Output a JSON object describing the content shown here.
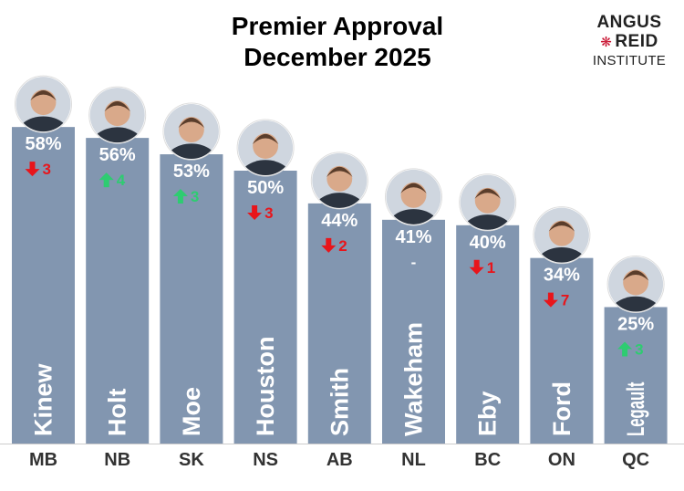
{
  "title_line1": "Premier Approval",
  "title_line2": "December 2025",
  "logo": {
    "line1": "ANGUS",
    "line2": "REID",
    "line3": "INSTITUTE"
  },
  "colors": {
    "bar": "#8296b0",
    "up": "#2ecc71",
    "down": "#e8151b",
    "axis": "#cccccc",
    "logo_leaf": "#c8102e"
  },
  "chart_data": {
    "type": "bar",
    "title": "Premier Approval December 2025",
    "categories": [
      "MB",
      "NB",
      "SK",
      "NS",
      "AB",
      "NL",
      "BC",
      "ON",
      "QC"
    ],
    "premiers": [
      "Kinew",
      "Holt",
      "Moe",
      "Houston",
      "Smith",
      "Wakeham",
      "Eby",
      "Ford",
      "Legault"
    ],
    "values": [
      58,
      56,
      53,
      50,
      44,
      41,
      40,
      34,
      25
    ],
    "value_labels": [
      "58%",
      "56%",
      "53%",
      "50%",
      "44%",
      "41%",
      "40%",
      "34%",
      "25%"
    ],
    "changes": [
      {
        "dir": "down",
        "label": "3"
      },
      {
        "dir": "up",
        "label": "4"
      },
      {
        "dir": "up",
        "label": "3"
      },
      {
        "dir": "down",
        "label": "3"
      },
      {
        "dir": "down",
        "label": "2"
      },
      {
        "dir": "none",
        "label": "-"
      },
      {
        "dir": "down",
        "label": "1"
      },
      {
        "dir": "down",
        "label": "7"
      },
      {
        "dir": "up",
        "label": "3"
      }
    ],
    "ylim": [
      0,
      100
    ],
    "xlabel": "",
    "ylabel": ""
  }
}
